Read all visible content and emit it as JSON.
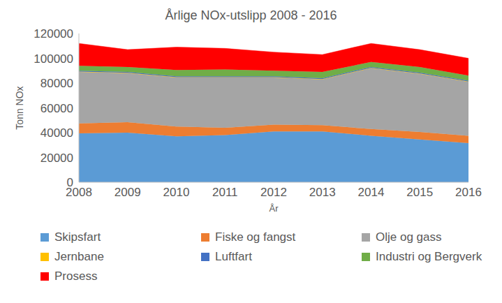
{
  "chart_data": {
    "type": "area",
    "title": "Årlige NOx-utslipp 2008 - 2016",
    "x_label": "År",
    "y_label": "Tonn NOx",
    "categories": [
      "2008",
      "2009",
      "2010",
      "2011",
      "2012",
      "2013",
      "2014",
      "2015",
      "2016"
    ],
    "series": [
      {
        "name": "Skipsfart",
        "color": "#5B9BD5",
        "values": [
          39500,
          40000,
          37000,
          38000,
          41000,
          41000,
          37500,
          34500,
          31500
        ]
      },
      {
        "name": "Fiske og fangst",
        "color": "#ED7D31",
        "values": [
          8000,
          8500,
          8000,
          6000,
          5500,
          5000,
          5500,
          6000,
          6000
        ]
      },
      {
        "name": "Olje og gass",
        "color": "#A5A5A5",
        "values": [
          41500,
          39500,
          39500,
          40500,
          38000,
          37000,
          49000,
          47000,
          43500
        ]
      },
      {
        "name": "Jernbane",
        "color": "#FFC000",
        "values": [
          300,
          300,
          300,
          300,
          300,
          300,
          300,
          300,
          300
        ]
      },
      {
        "name": "Luftfart",
        "color": "#4472C4",
        "values": [
          700,
          700,
          700,
          700,
          700,
          700,
          700,
          700,
          700
        ]
      },
      {
        "name": "Industri og Bergverk",
        "color": "#70AD47",
        "values": [
          4000,
          4000,
          5000,
          5500,
          4500,
          5000,
          4000,
          4500,
          4000
        ]
      },
      {
        "name": "Prosess",
        "color": "#FF0000",
        "values": [
          18000,
          14000,
          18500,
          17000,
          15000,
          14000,
          15000,
          14000,
          14000
        ]
      }
    ],
    "ylim": [
      0,
      120000
    ],
    "yticks": [
      0,
      20000,
      40000,
      60000,
      80000,
      100000,
      120000
    ],
    "stacked": true,
    "grid": false,
    "legend": "bottom"
  }
}
